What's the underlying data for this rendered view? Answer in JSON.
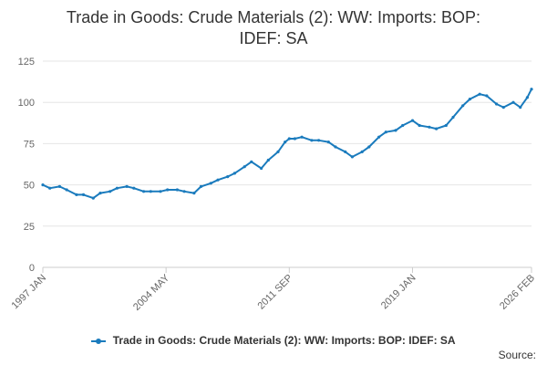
{
  "chart_data": {
    "type": "line",
    "title_lines": [
      "Trade in Goods: Crude Materials (2): WW: Imports: BOP:",
      "IDEF: SA"
    ],
    "ylim": [
      0,
      125
    ],
    "yticks": [
      0,
      25,
      50,
      75,
      100,
      125
    ],
    "x_range": [
      "1997-01",
      "2026-02"
    ],
    "xtick_labels": [
      {
        "label": "1997 JAN",
        "date": "1997-01"
      },
      {
        "label": "2004 MAY",
        "date": "2004-05"
      },
      {
        "label": "2011 SEP",
        "date": "2011-09"
      },
      {
        "label": "2019 JAN",
        "date": "2019-01"
      },
      {
        "label": "2026 FEB",
        "date": "2026-02"
      }
    ],
    "grid": true,
    "legend_position": "bottom",
    "series": [
      {
        "name": "Trade in Goods: Crude Materials (2): WW: Imports: BOP: IDEF: SA",
        "color": "#1a7bbd",
        "points": [
          [
            "1997-01",
            50
          ],
          [
            "1997-06",
            48
          ],
          [
            "1998-01",
            49
          ],
          [
            "1998-06",
            47
          ],
          [
            "1999-01",
            44
          ],
          [
            "1999-06",
            44
          ],
          [
            "2000-01",
            42
          ],
          [
            "2000-06",
            45
          ],
          [
            "2001-01",
            46
          ],
          [
            "2001-06",
            48
          ],
          [
            "2002-01",
            49
          ],
          [
            "2002-06",
            48
          ],
          [
            "2003-01",
            46
          ],
          [
            "2003-06",
            46
          ],
          [
            "2004-01",
            46
          ],
          [
            "2004-06",
            47
          ],
          [
            "2005-01",
            47
          ],
          [
            "2005-06",
            46
          ],
          [
            "2006-01",
            45
          ],
          [
            "2006-06",
            49
          ],
          [
            "2007-01",
            51
          ],
          [
            "2007-06",
            53
          ],
          [
            "2008-01",
            55
          ],
          [
            "2008-06",
            57
          ],
          [
            "2009-01",
            61
          ],
          [
            "2009-06",
            64
          ],
          [
            "2010-01",
            60
          ],
          [
            "2010-06",
            65
          ],
          [
            "2011-01",
            70
          ],
          [
            "2011-06",
            76
          ],
          [
            "2011-09",
            78
          ],
          [
            "2012-01",
            78
          ],
          [
            "2012-06",
            79
          ],
          [
            "2013-01",
            77
          ],
          [
            "2013-06",
            77
          ],
          [
            "2014-01",
            76
          ],
          [
            "2014-06",
            73
          ],
          [
            "2015-01",
            70
          ],
          [
            "2015-06",
            67
          ],
          [
            "2016-01",
            70
          ],
          [
            "2016-06",
            73
          ],
          [
            "2017-01",
            79
          ],
          [
            "2017-06",
            82
          ],
          [
            "2018-01",
            83
          ],
          [
            "2018-06",
            86
          ],
          [
            "2019-01",
            89
          ],
          [
            "2019-06",
            86
          ],
          [
            "2020-01",
            85
          ],
          [
            "2020-06",
            84
          ],
          [
            "2021-01",
            86
          ],
          [
            "2021-06",
            91
          ],
          [
            "2022-01",
            98
          ],
          [
            "2022-06",
            102
          ],
          [
            "2023-01",
            105
          ],
          [
            "2023-06",
            104
          ],
          [
            "2024-01",
            99
          ],
          [
            "2024-06",
            97
          ],
          [
            "2025-01",
            100
          ],
          [
            "2025-06",
            97
          ],
          [
            "2025-11",
            103
          ],
          [
            "2026-02",
            108
          ]
        ]
      }
    ],
    "source_label": "Source:"
  }
}
